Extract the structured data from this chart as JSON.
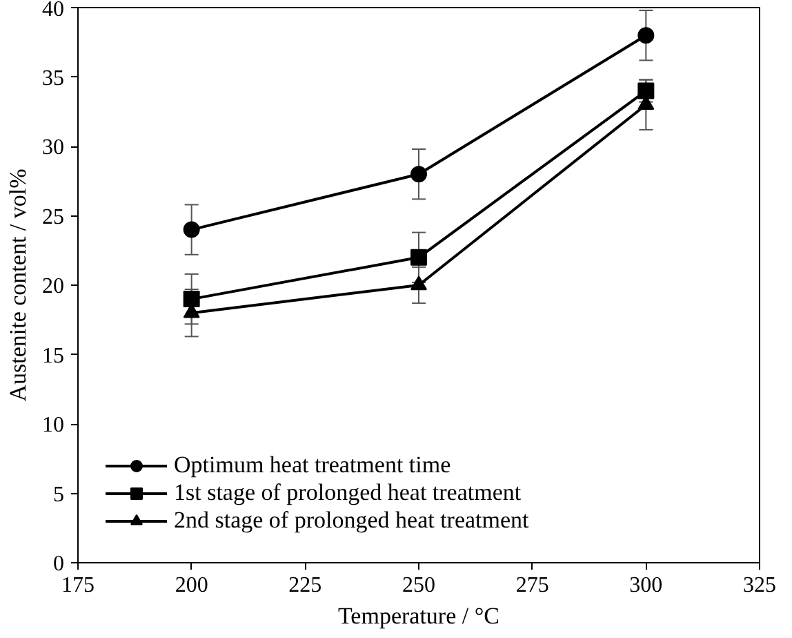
{
  "chart_data": {
    "type": "line",
    "xlabel": "Temperature / °C",
    "ylabel": "Austenite content / vol%",
    "x": [
      200,
      250,
      300
    ],
    "series": [
      {
        "name": "Optimum heat treatment time",
        "color": "#000000",
        "values": [
          24,
          28,
          38
        ],
        "errors": [
          1.8,
          1.8,
          1.8
        ],
        "marker": "circle"
      },
      {
        "name": "1st stage of prolonged heat treatment",
        "color": "#000000",
        "values": [
          19,
          22,
          34
        ],
        "errors": [
          1.8,
          1.8,
          0.8
        ],
        "marker": "square"
      },
      {
        "name": "2nd stage of prolonged heat treatment",
        "color": "#000000",
        "values": [
          18,
          20,
          33
        ],
        "errors": [
          1.7,
          1.3,
          1.8
        ],
        "marker": "triangle"
      }
    ],
    "xlim": [
      175,
      325
    ],
    "xticks": [
      175,
      200,
      225,
      250,
      275,
      300,
      325
    ],
    "ylim": [
      0,
      40
    ],
    "yticks": [
      0,
      5,
      10,
      15,
      20,
      25,
      30,
      35,
      40
    ],
    "grid": false,
    "legend": "bottom left",
    "line_style": "solid"
  }
}
